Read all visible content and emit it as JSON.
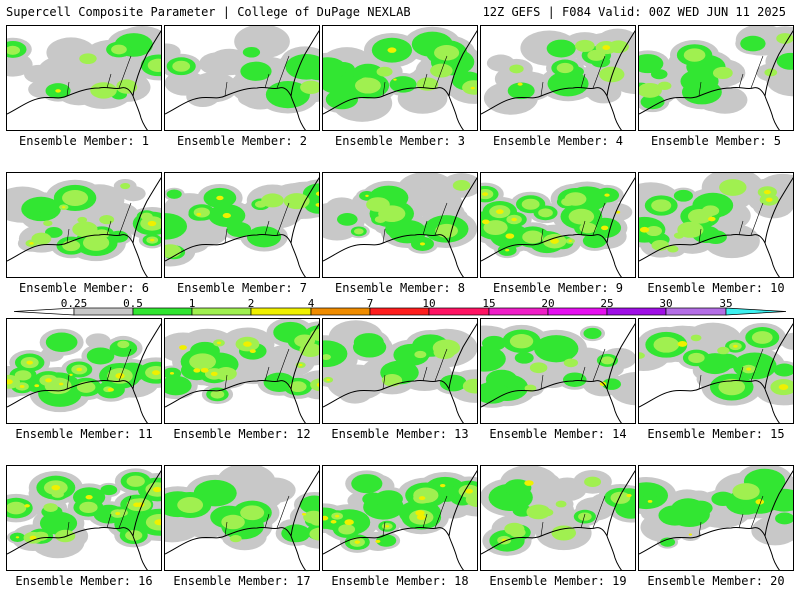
{
  "header": {
    "left": "Supercell Composite Parameter | College of DuPage NEXLAB",
    "right": "12Z GEFS | F084 Valid: 00Z WED JUN 11 2025"
  },
  "legend": {
    "labels": [
      "0.25",
      "0.5",
      "1",
      "2",
      "4",
      "7",
      "10",
      "15",
      "20",
      "25",
      "30",
      "35"
    ],
    "colors": [
      "#c8c8c8",
      "#32e632",
      "#a0f050",
      "#f0f000",
      "#f08c00",
      "#ff1e1e",
      "#ff1464",
      "#f01ec8",
      "#e60ff0",
      "#a00fe6",
      "#b46ee6",
      "#3cf0f0"
    ]
  },
  "members": [
    {
      "label": "Ensemble Member: 1",
      "seed": 11,
      "intensity": 0.55
    },
    {
      "label": "Ensemble Member: 2",
      "seed": 23,
      "intensity": 0.45
    },
    {
      "label": "Ensemble Member: 3",
      "seed": 37,
      "intensity": 0.6
    },
    {
      "label": "Ensemble Member: 4",
      "seed": 41,
      "intensity": 0.6
    },
    {
      "label": "Ensemble Member: 5",
      "seed": 53,
      "intensity": 0.5
    },
    {
      "label": "Ensemble Member: 6",
      "seed": 67,
      "intensity": 0.65
    },
    {
      "label": "Ensemble Member: 7",
      "seed": 71,
      "intensity": 0.55
    },
    {
      "label": "Ensemble Member: 8",
      "seed": 83,
      "intensity": 0.55
    },
    {
      "label": "Ensemble Member: 9",
      "seed": 97,
      "intensity": 0.8
    },
    {
      "label": "Ensemble Member: 10",
      "seed": 101,
      "intensity": 0.6
    },
    {
      "label": "Ensemble Member: 11",
      "seed": 113,
      "intensity": 0.8
    },
    {
      "label": "Ensemble Member: 12",
      "seed": 127,
      "intensity": 0.75
    },
    {
      "label": "Ensemble Member: 13",
      "seed": 131,
      "intensity": 0.5
    },
    {
      "label": "Ensemble Member: 14",
      "seed": 149,
      "intensity": 0.5
    },
    {
      "label": "Ensemble Member: 15",
      "seed": 151,
      "intensity": 0.6
    },
    {
      "label": "Ensemble Member: 16",
      "seed": 163,
      "intensity": 0.9
    },
    {
      "label": "Ensemble Member: 17",
      "seed": 173,
      "intensity": 0.55
    },
    {
      "label": "Ensemble Member: 18",
      "seed": 181,
      "intensity": 0.75
    },
    {
      "label": "Ensemble Member: 19",
      "seed": 191,
      "intensity": 0.6
    },
    {
      "label": "Ensemble Member: 20",
      "seed": 197,
      "intensity": 0.55
    }
  ]
}
